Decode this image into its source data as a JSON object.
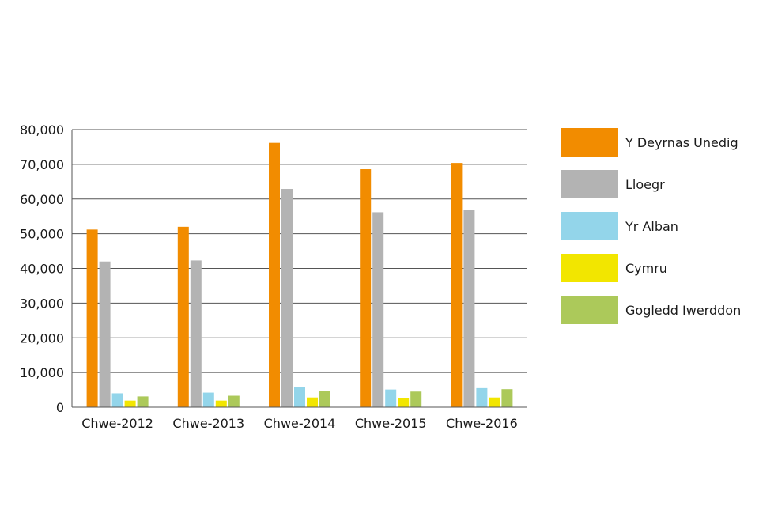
{
  "chart_data": {
    "type": "bar",
    "categories": [
      "Chwe-2012",
      "Chwe-2013",
      "Chwe-2014",
      "Chwe-2015",
      "Chwe-2016"
    ],
    "series": [
      {
        "name": "Y Deyrnas Unedig",
        "color": "#f28c00",
        "values": [
          51200,
          52000,
          76200,
          68600,
          70400
        ]
      },
      {
        "name": "Lloegr",
        "color": "#b3b3b3",
        "values": [
          42000,
          42300,
          62900,
          56200,
          56800
        ]
      },
      {
        "name": "Yr Alban",
        "color": "#93d5ea",
        "values": [
          4000,
          4200,
          5700,
          5100,
          5500
        ]
      },
      {
        "name": "Cymru",
        "color": "#f2e600",
        "values": [
          1900,
          1900,
          2800,
          2600,
          2800
        ]
      },
      {
        "name": "Gogledd Iwerddon",
        "color": "#acc95a",
        "values": [
          3100,
          3300,
          4600,
          4500,
          5200
        ]
      }
    ],
    "ylim": [
      0,
      80000
    ],
    "y_ticks": [
      0,
      10000,
      20000,
      30000,
      40000,
      50000,
      60000,
      70000,
      80000
    ],
    "y_tick_labels": [
      "0",
      "10,000",
      "20,000",
      "30,000",
      "40,000",
      "50,000",
      "60,000",
      "70,000",
      "80,000"
    ],
    "grid": true,
    "legend_position": "right"
  }
}
